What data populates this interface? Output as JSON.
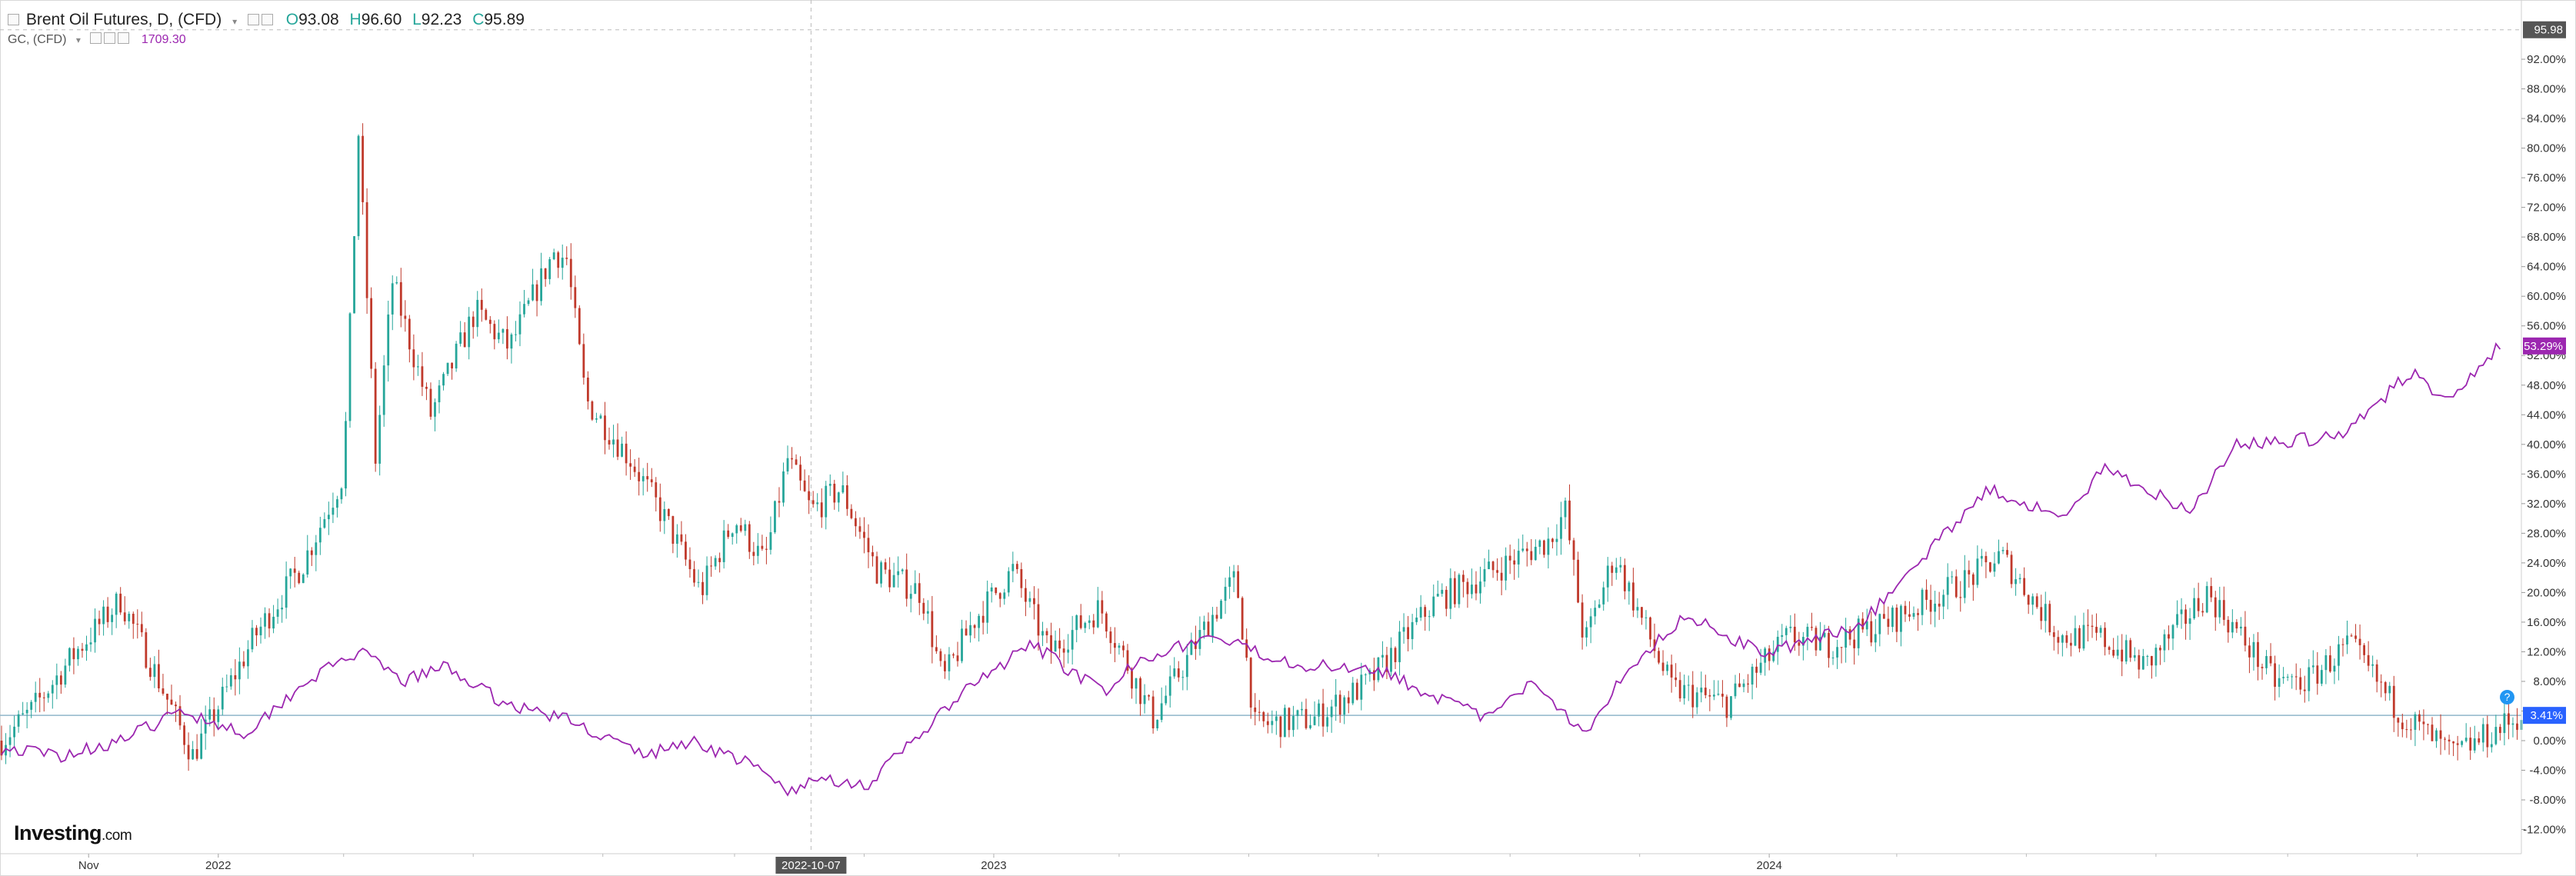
{
  "legend": {
    "main_title": "Brent Oil Futures, D, (CFD)",
    "open_label": "O",
    "open_value": "93.08",
    "high_label": "H",
    "high_value": "96.60",
    "low_label": "L",
    "low_value": "92.23",
    "close_label": "C",
    "close_value": "95.89",
    "sub_title": "GC, (CFD)",
    "sub_value": "1709.30"
  },
  "crosshair_date": "2022-10-07",
  "branding": {
    "name": "Investing",
    "suffix": ".com"
  },
  "colors": {
    "up": "#26a69a",
    "down": "#c0392b",
    "overlay": "#9c27b0",
    "price_line": "#8fb6c9",
    "accent_badge": "#2962ff"
  },
  "chart_data": {
    "type": "line",
    "title": "Brent Oil Futures, D, (CFD)",
    "x_tick_labels": [
      "Nov",
      "2022",
      "2022-10-07",
      "2023",
      "2024"
    ],
    "y_axis": {
      "unit": "%",
      "range": [
        -12,
        96
      ],
      "tick_labels": [
        "92.00%",
        "88.00%",
        "84.00%",
        "80.00%",
        "76.00%",
        "72.00%",
        "68.00%",
        "64.00%",
        "60.00%",
        "56.00%",
        "52.00%",
        "48.00%",
        "44.00%",
        "40.00%",
        "36.00%",
        "32.00%",
        "28.00%",
        "24.00%",
        "20.00%",
        "16.00%",
        "12.00%",
        "8.00%",
        "4.00%",
        "0.00%",
        "-4.00%",
        "-8.00%",
        "-12.00%"
      ],
      "badges": [
        {
          "label": "95.98",
          "value": 95.98,
          "color": "#555555"
        },
        {
          "label": "53.29%",
          "value": 53.29,
          "color": "#9c27b0"
        },
        {
          "label": "3.41%",
          "value": 3.41,
          "color": "#2962ff"
        }
      ]
    },
    "x_range": [
      "2021-09-21",
      "2024-12-20"
    ],
    "series": [
      {
        "name": "Brent Oil Futures, D, (CFD)",
        "style": "candlestick",
        "x": [
          "2021-09-21",
          "2021-10-05",
          "2021-10-26",
          "2021-11-16",
          "2021-12-01",
          "2021-12-20",
          "2022-01-18",
          "2022-02-10",
          "2022-03-01",
          "2022-03-08",
          "2022-03-16",
          "2022-03-24",
          "2022-04-11",
          "2022-05-02",
          "2022-05-18",
          "2022-06-08",
          "2022-06-14",
          "2022-06-23",
          "2022-07-14",
          "2022-08-01",
          "2022-08-16",
          "2022-09-01",
          "2022-09-15",
          "2022-09-26",
          "2022-10-07",
          "2022-10-21",
          "2022-11-07",
          "2022-11-28",
          "2022-12-08",
          "2022-12-22",
          "2023-01-10",
          "2023-01-27",
          "2023-02-20",
          "2023-03-17",
          "2023-04-12",
          "2023-04-25",
          "2023-05-04",
          "2023-06-01",
          "2023-06-27",
          "2023-07-28",
          "2023-08-18",
          "2023-09-19",
          "2023-09-27",
          "2023-10-06",
          "2023-10-20",
          "2023-11-16",
          "2023-12-12",
          "2024-01-10",
          "2024-01-29",
          "2024-02-26",
          "2024-04-05",
          "2024-04-19",
          "2024-05-17",
          "2024-06-04",
          "2024-06-26",
          "2024-07-25",
          "2024-08-26",
          "2024-09-10",
          "2024-09-30",
          "2024-10-23",
          "2024-11-18",
          "2024-12-20"
        ],
        "values": [
          0,
          4,
          12,
          19,
          10,
          -2,
          14,
          24,
          36,
          82,
          38,
          62,
          44,
          58,
          53,
          66,
          65,
          46,
          38,
          29,
          20,
          30,
          24,
          38,
          31,
          34,
          23,
          20,
          8,
          16,
          23,
          12,
          18,
          3,
          16,
          22,
          2,
          3,
          8,
          19,
          22,
          27,
          31,
          13,
          25,
          7,
          5,
          14,
          13,
          16,
          22,
          25,
          14,
          14,
          10,
          20,
          8,
          8,
          13,
          4,
          -2,
          3.41
        ]
      },
      {
        "name": "GC, (CFD)",
        "style": "line",
        "x": [
          "2021-09-21",
          "2021-10-19",
          "2021-11-16",
          "2021-12-15",
          "2022-01-14",
          "2022-02-11",
          "2022-03-08",
          "2022-03-29",
          "2022-04-18",
          "2022-05-16",
          "2022-06-13",
          "2022-07-21",
          "2022-08-12",
          "2022-09-07",
          "2022-09-28",
          "2022-10-12",
          "2022-11-03",
          "2022-11-24",
          "2022-12-20",
          "2023-01-19",
          "2023-02-24",
          "2023-03-09",
          "2023-04-13",
          "2023-05-04",
          "2023-05-30",
          "2023-06-29",
          "2023-07-20",
          "2023-08-21",
          "2023-09-13",
          "2023-10-06",
          "2023-10-27",
          "2023-11-23",
          "2023-12-27",
          "2024-01-17",
          "2024-02-14",
          "2024-03-08",
          "2024-04-12",
          "2024-05-20",
          "2024-06-07",
          "2024-07-17",
          "2024-08-08",
          "2024-09-26",
          "2024-10-30",
          "2024-11-14",
          "2024-12-10"
        ],
        "values": [
          -1,
          -2,
          0,
          4,
          1,
          8,
          12,
          8,
          10,
          5,
          3,
          -2,
          0,
          -3,
          -7,
          -5,
          -6,
          0,
          7,
          13,
          6,
          11,
          14,
          12,
          10,
          10,
          7,
          3,
          8,
          1,
          10,
          17,
          12,
          13,
          16,
          23,
          34,
          30,
          37,
          31,
          40,
          41,
          50,
          46,
          53.29
        ]
      }
    ]
  }
}
